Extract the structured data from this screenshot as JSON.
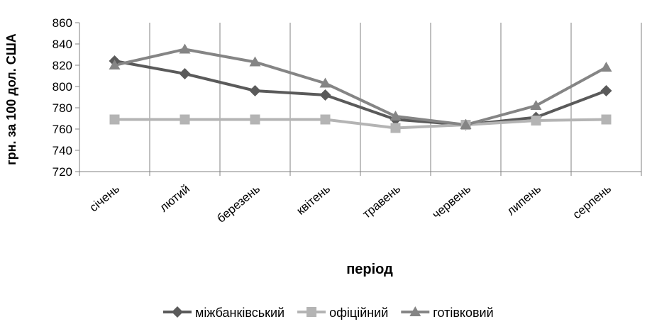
{
  "chart_data": {
    "type": "line",
    "title": "",
    "xlabel": "період",
    "ylabel": "грн. за 100 дол. США",
    "ylim": [
      720,
      860
    ],
    "yticks": [
      720,
      740,
      760,
      780,
      800,
      820,
      840,
      860
    ],
    "categories": [
      "січень",
      "лютий",
      "березень",
      "квітень",
      "травень",
      "червень",
      "липень",
      "серпень"
    ],
    "grid": "vertical",
    "legend_position": "bottom",
    "series": [
      {
        "name": "міжбанківський",
        "color": "#5a5a5a",
        "marker": "diamond",
        "values": [
          824,
          812,
          796,
          792,
          769,
          764,
          771,
          796
        ]
      },
      {
        "name": "офіційний",
        "color": "#b4b4b4",
        "marker": "square",
        "values": [
          769,
          769,
          769,
          769,
          761,
          764,
          768,
          769
        ]
      },
      {
        "name": "готівковий",
        "color": "#858585",
        "marker": "triangle",
        "values": [
          820,
          835,
          823,
          803,
          772,
          764,
          782,
          818
        ]
      }
    ]
  }
}
